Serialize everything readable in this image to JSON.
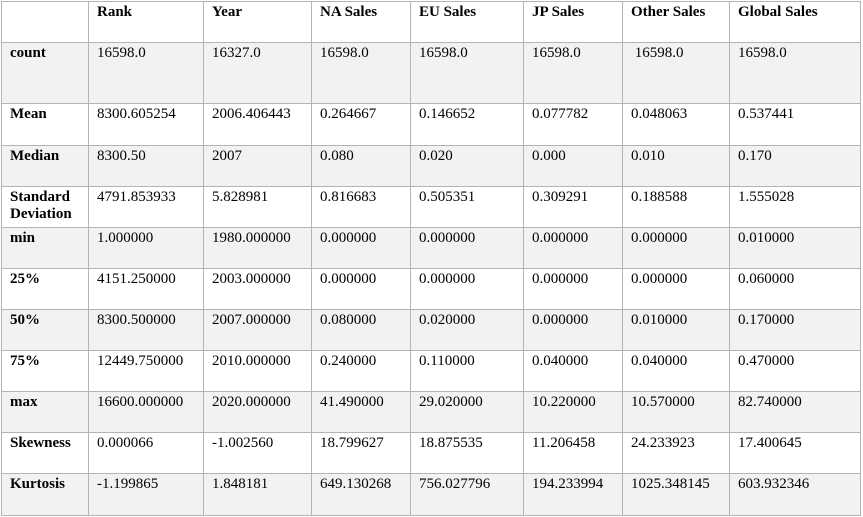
{
  "table": {
    "columns": [
      "",
      "Rank",
      "Year",
      "NA Sales",
      "EU Sales",
      "JP Sales",
      "Other Sales",
      "Global Sales"
    ],
    "rows": [
      {
        "label": "count",
        "cells": [
          "16598.0",
          "16327.0",
          "16598.0",
          "16598.0",
          "16598.0",
          " 16598.0",
          "16598.0"
        ]
      },
      {
        "label": "Mean",
        "cells": [
          "8300.605254",
          "2006.406443",
          "0.264667",
          "0.146652",
          "0.077782",
          "0.048063",
          "0.537441"
        ]
      },
      {
        "label": "Median",
        "cells": [
          "8300.50",
          "2007",
          "0.080",
          "0.020",
          "0.000",
          "0.010",
          "0.170"
        ]
      },
      {
        "label": "Standard Deviation",
        "cells": [
          "4791.853933",
          "5.828981",
          "0.816683",
          "0.505351",
          "0.309291",
          "0.188588",
          "1.555028"
        ]
      },
      {
        "label": "min",
        "cells": [
          "1.000000",
          "1980.000000",
          "0.000000",
          "0.000000",
          "0.000000",
          "0.000000",
          "0.010000"
        ]
      },
      {
        "label": "25%",
        "cells": [
          "4151.250000",
          "2003.000000",
          "0.000000",
          "0.000000",
          "0.000000",
          "0.000000",
          "0.060000"
        ]
      },
      {
        "label": "50%",
        "cells": [
          "8300.500000",
          "2007.000000",
          "0.080000",
          "0.020000",
          "0.000000",
          "0.010000",
          "0.170000"
        ]
      },
      {
        "label": "75%",
        "cells": [
          "12449.750000",
          "2010.000000",
          "0.240000",
          "0.110000",
          "0.040000",
          "0.040000",
          "0.470000"
        ]
      },
      {
        "label": "max",
        "cells": [
          "16600.000000",
          "2020.000000",
          "41.490000",
          "29.020000",
          "10.220000",
          "10.570000",
          "82.740000"
        ]
      },
      {
        "label": "Skewness",
        "cells": [
          "0.000066",
          "-1.002560",
          "18.799627",
          "18.875535",
          "11.206458",
          "24.233923",
          "17.400645"
        ]
      },
      {
        "label": "Kurtosis",
        "cells": [
          "-1.199865",
          "1.848181",
          "649.130268",
          "756.027796",
          "194.233994",
          "1025.348145",
          "603.932346"
        ]
      }
    ]
  }
}
